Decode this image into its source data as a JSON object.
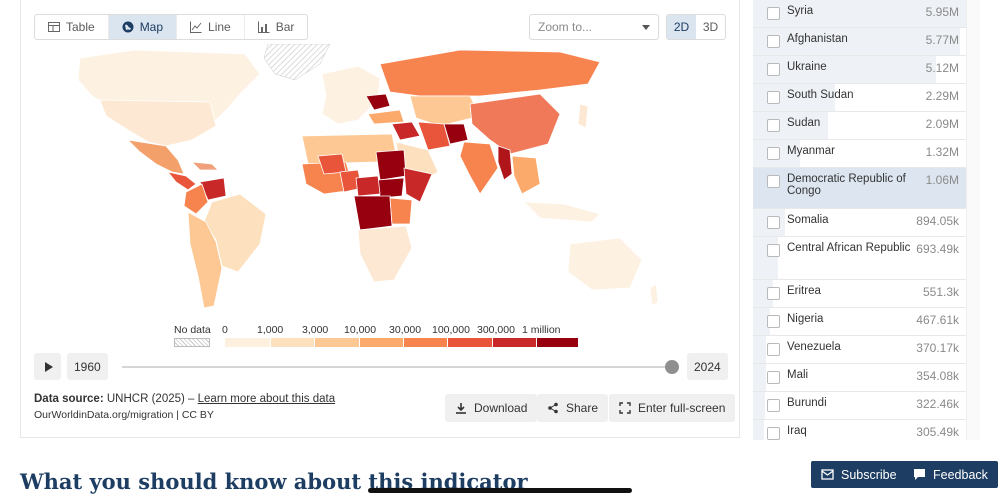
{
  "tabs": [
    {
      "label": "Table",
      "icon": "table-icon"
    },
    {
      "label": "Map",
      "icon": "globe-icon",
      "active": true
    },
    {
      "label": "Line",
      "icon": "line-chart-icon"
    },
    {
      "label": "Bar",
      "icon": "bar-chart-icon"
    }
  ],
  "zoom": {
    "placeholder": "Zoom to..."
  },
  "projection": {
    "option_2d": "2D",
    "option_3d": "3D",
    "selected": "2D"
  },
  "legend": {
    "no_data": "No data",
    "ticks": [
      "0",
      "1,000",
      "3,000",
      "10,000",
      "30,000",
      "100,000",
      "300,000",
      "1 million"
    ],
    "colors": [
      "#fef0de",
      "#fde0bd",
      "#fdc893",
      "#fca96c",
      "#f7834f",
      "#e9553a",
      "#c82828",
      "#96000f"
    ]
  },
  "timeline": {
    "start_year": "1960",
    "end_year": "2024",
    "position": 1.0
  },
  "source": {
    "label": "Data source:",
    "text": "UNHCR (2025) –",
    "link": "Learn more about this data",
    "line2": "OurWorldinData.org/migration | CC BY"
  },
  "actions": {
    "download": "Download",
    "share": "Share",
    "fullscreen": "Enter full-screen"
  },
  "countries": [
    {
      "name": "Syria",
      "value": "5.95M",
      "share": 1.0
    },
    {
      "name": "Afghanistan",
      "value": "5.77M",
      "share": 0.97
    },
    {
      "name": "Ukraine",
      "value": "5.12M",
      "share": 0.86
    },
    {
      "name": "South Sudan",
      "value": "2.29M",
      "share": 0.385
    },
    {
      "name": "Sudan",
      "value": "2.09M",
      "share": 0.351
    },
    {
      "name": "Myanmar",
      "value": "1.32M",
      "share": 0.222
    },
    {
      "name": "Democratic Republic of Congo",
      "value": "1.06M",
      "share": 0.178,
      "highlight": true
    },
    {
      "name": "Somalia",
      "value": "894.05k",
      "share": 0.15
    },
    {
      "name": "Central African Republic",
      "value": "693.49k",
      "share": 0.117
    },
    {
      "name": "Eritrea",
      "value": "551.3k",
      "share": 0.093
    },
    {
      "name": "Nigeria",
      "value": "467.61k",
      "share": 0.079
    },
    {
      "name": "Venezuela",
      "value": "370.17k",
      "share": 0.062
    },
    {
      "name": "Mali",
      "value": "354.08k",
      "share": 0.06
    },
    {
      "name": "Burundi",
      "value": "322.46k",
      "share": 0.054
    },
    {
      "name": "Iraq",
      "value": "305.49k",
      "share": 0.051
    }
  ],
  "article": {
    "heading": "What you should know about this indicator"
  },
  "footer": {
    "subscribe": "Subscribe",
    "feedback": "Feedback"
  }
}
